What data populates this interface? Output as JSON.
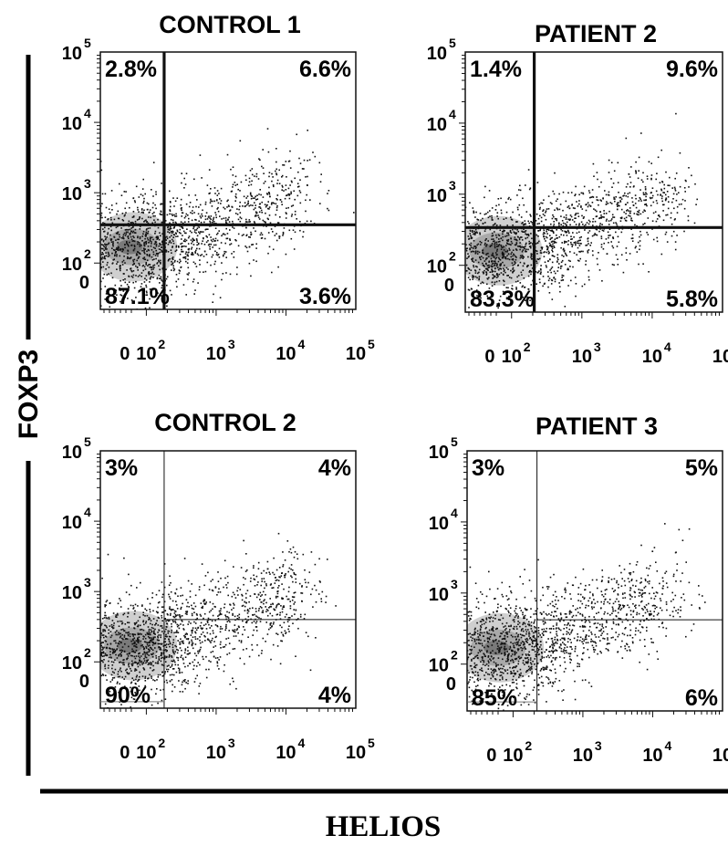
{
  "chart_data": {
    "type": "scatter",
    "xlabel": "HELIOS",
    "ylabel": "FOXP3",
    "x_ticks": [
      {
        "base": "0",
        "exp": ""
      },
      {
        "base": "10",
        "exp": "2"
      },
      {
        "base": "10",
        "exp": "3"
      },
      {
        "base": "10",
        "exp": "4"
      },
      {
        "base": "10",
        "exp": "5"
      }
    ],
    "y_ticks": [
      {
        "base": "0",
        "exp": ""
      },
      {
        "base": "10",
        "exp": "2"
      },
      {
        "base": "10",
        "exp": "3"
      },
      {
        "base": "10",
        "exp": "4"
      },
      {
        "base": "10",
        "exp": "5"
      }
    ],
    "panels": [
      {
        "title": "CONTROL 1",
        "quadrants": {
          "upper_left": "2.8%",
          "upper_right": "6.6%",
          "lower_left": "87.1%",
          "lower_right": "3.6%"
        },
        "gate_x": 180,
        "gate_y": 350,
        "cluster": {
          "x": 40,
          "y": 170
        },
        "gate_style": "thick"
      },
      {
        "title": "PATIENT 2",
        "quadrants": {
          "upper_left": "1.4%",
          "upper_right": "9.6%",
          "lower_left": "83.3%",
          "lower_right": "5.8%"
        },
        "gate_x": 210,
        "gate_y": 340,
        "cluster": {
          "x": 40,
          "y": 160
        },
        "gate_style": "thick"
      },
      {
        "title": "CONTROL 2",
        "quadrants": {
          "upper_left": "3%",
          "upper_right": "4%",
          "lower_left": "90%",
          "lower_right": "4%"
        },
        "gate_x": 180,
        "gate_y": 400,
        "cluster": {
          "x": 40,
          "y": 170
        },
        "gate_style": "thin"
      },
      {
        "title": "PATIENT 3",
        "quadrants": {
          "upper_left": "3%",
          "upper_right": "5%",
          "lower_left": "85%",
          "lower_right": "6%"
        },
        "gate_x": 220,
        "gate_y": 420,
        "cluster": {
          "x": 40,
          "y": 170
        },
        "gate_style": "thin"
      }
    ]
  }
}
